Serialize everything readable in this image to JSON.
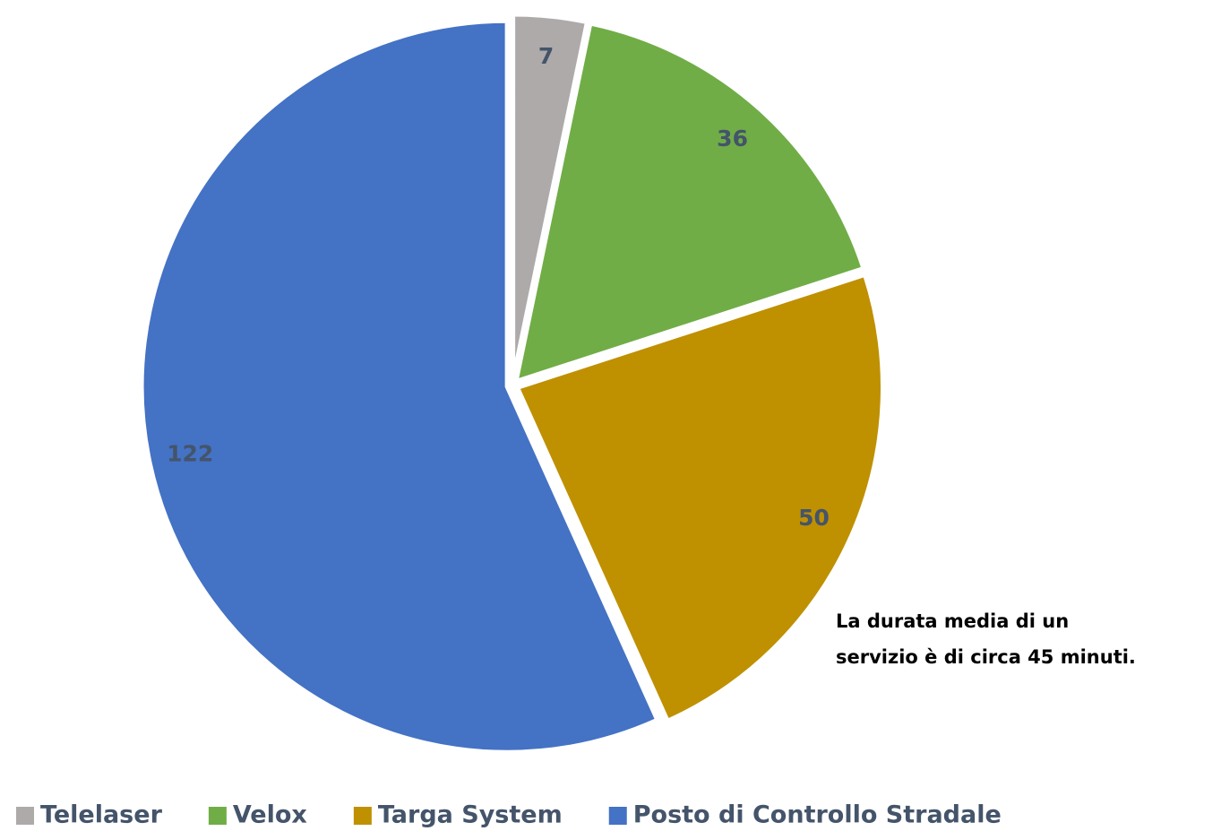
{
  "chart_data": {
    "type": "pie",
    "categories": [
      "Telelaser",
      "Velox",
      "Targa System",
      "Posto di Controllo Stradale"
    ],
    "values": [
      7,
      36,
      50,
      122
    ],
    "colors": [
      "#aeaaaa",
      "#70ad47",
      "#bf9000",
      "#4472c4"
    ],
    "annotation": [
      "La durata media di un",
      "servizio è di circa 45 minuti."
    ],
    "legend": "bottom"
  }
}
